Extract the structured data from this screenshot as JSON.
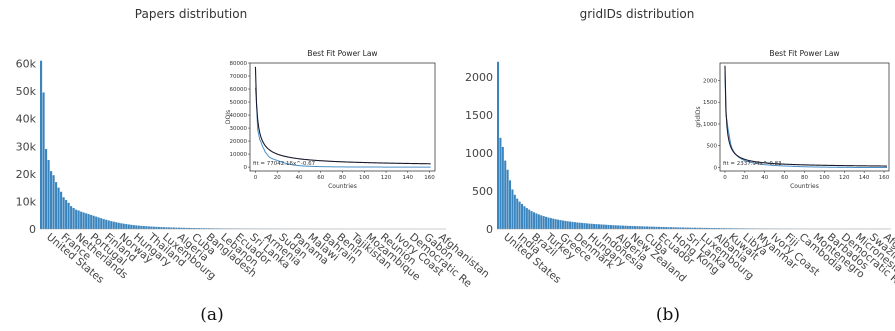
{
  "figure": {
    "panels": [
      {
        "id": "a",
        "caption": "(a)"
      },
      {
        "id": "b",
        "caption": "(b)"
      }
    ]
  },
  "chart_data": [
    {
      "type": "bar",
      "title": "Papers distribution",
      "ylim": [
        0,
        62000
      ],
      "yticks": [
        0,
        10000,
        20000,
        30000,
        40000,
        50000,
        60000
      ],
      "ytick_labels": [
        "0",
        "10k",
        "20k",
        "30k",
        "40k",
        "50k",
        "60k"
      ],
      "labeled_categories": [
        "United States",
        "France",
        "Netherlands",
        "Portugal",
        "Finland",
        "Norway",
        "Hungary",
        "Thailand",
        "Luxembourg",
        "Algeria",
        "Cuba",
        "Bangladesh",
        "Lebanon",
        "Ecuador",
        "Sri Lanka",
        "Armenia",
        "Sudan",
        "Panama",
        "Malawi",
        "Bahrain",
        "Benin",
        "Tajikistan",
        "Mozambique",
        "Reunion",
        "Ivory Coast",
        "Democratic Re",
        "Gabon",
        "Afghanistan"
      ],
      "values": [
        61000,
        49500,
        29000,
        25000,
        21000,
        19500,
        17000,
        15000,
        13500,
        11500,
        10500,
        9500,
        8300,
        7600,
        7000,
        6700,
        6300,
        6000,
        5700,
        5400,
        5100,
        4800,
        4500,
        4200,
        3900,
        3600,
        3350,
        3100,
        2850,
        2650,
        2450,
        2250,
        2080,
        1920,
        1780,
        1650,
        1530,
        1420,
        1320,
        1230,
        1150,
        1080,
        1010,
        950,
        890,
        840,
        790,
        745,
        705,
        665,
        630,
        595,
        565,
        535,
        505,
        480,
        455,
        432,
        410,
        390,
        370,
        352,
        335,
        318,
        302,
        287,
        273,
        260,
        247,
        235,
        224,
        213,
        203,
        193,
        184,
        175,
        167,
        159,
        151,
        144,
        137,
        131,
        125,
        119,
        113,
        108,
        103,
        98,
        93,
        89,
        85,
        81,
        77,
        73,
        70,
        67,
        64,
        61,
        58,
        55,
        52,
        50,
        48,
        46,
        44,
        42,
        40,
        38,
        36,
        34,
        32,
        30,
        29,
        28,
        27,
        26,
        25,
        24,
        23,
        22,
        21,
        20,
        19,
        18,
        17,
        16,
        15,
        14,
        13,
        12,
        11,
        10,
        9,
        8,
        8,
        7,
        7,
        6,
        6,
        5,
        5,
        4,
        4,
        3,
        3,
        3,
        2,
        2,
        2,
        2,
        1,
        1,
        1,
        1,
        1,
        1,
        1,
        1,
        1,
        1,
        1,
        1
      ],
      "color": "#3b85bf",
      "inset": {
        "type": "line",
        "title": "Best Fit Power Law",
        "xlabel": "Countries",
        "ylabel": "DOIs",
        "xlim": [
          -5,
          165
        ],
        "ylim": [
          -3000,
          80000
        ],
        "xticks": [
          0,
          20,
          40,
          60,
          80,
          100,
          120,
          140,
          160
        ],
        "yticks": [
          0,
          10000,
          20000,
          30000,
          40000,
          50000,
          60000,
          70000,
          80000
        ],
        "annotation": "fit = 77042.16x^-0.67",
        "data_series_color": "#4a90c8",
        "fit_series_color": "#1a1a2e",
        "fit": {
          "a": 77042.16,
          "b": 0.67
        }
      }
    },
    {
      "type": "bar",
      "title": "gridIDs distribution",
      "ylim": [
        0,
        2250
      ],
      "yticks": [
        0,
        500,
        1000,
        1500,
        2000
      ],
      "ytick_labels": [
        "0",
        "500",
        "1000",
        "1500",
        "2000"
      ],
      "labeled_categories": [
        "United States",
        "India",
        "Brazil",
        "Turkey",
        "Greece",
        "Denmark",
        "Hungary",
        "Indonesia",
        "Algeria",
        "New Zealand",
        "Cuba",
        "Ecuador",
        "Hong Kong",
        "Sri Lanka",
        "Luxembourg",
        "Albania",
        "Kuwait",
        "Libya",
        "Myanmar",
        "Ivory Coast",
        "Fiji",
        "Cambodia",
        "Montenegro",
        "Barbados",
        "Democratic Re",
        "Micronesia",
        "Swaziland",
        "Afghanistan"
      ],
      "values": [
        2200,
        1200,
        1080,
        900,
        780,
        640,
        520,
        450,
        400,
        360,
        330,
        300,
        275,
        255,
        235,
        220,
        205,
        192,
        180,
        170,
        160,
        151,
        143,
        136,
        129,
        123,
        117,
        112,
        107,
        102,
        98,
        94,
        90,
        86,
        83,
        80,
        77,
        74,
        71,
        69,
        66,
        64,
        62,
        60,
        58,
        56,
        54,
        52,
        50,
        49,
        47,
        46,
        44,
        43,
        41,
        40,
        39,
        38,
        37,
        36,
        35,
        34,
        33,
        32,
        31,
        30,
        29,
        28,
        27,
        26,
        25,
        24,
        24,
        23,
        22,
        21,
        21,
        20,
        19,
        19,
        18,
        17,
        17,
        16,
        16,
        15,
        15,
        14,
        14,
        13,
        13,
        12,
        12,
        11,
        11,
        10,
        10,
        10,
        9,
        9,
        9,
        8,
        8,
        8,
        7,
        7,
        7,
        6,
        6,
        6,
        5,
        5,
        5,
        5,
        4,
        4,
        4,
        4,
        3,
        3,
        3,
        3,
        3,
        2,
        2,
        2,
        2,
        2,
        2,
        2,
        1,
        1,
        1,
        1,
        1,
        1,
        1,
        1,
        1,
        1,
        1,
        1,
        1,
        1,
        1,
        1,
        1,
        1,
        1,
        1,
        1,
        1,
        1,
        1,
        1,
        1,
        1,
        1,
        1,
        1,
        1,
        1,
        1,
        1
      ],
      "color": "#3b85bf",
      "inset": {
        "type": "line",
        "title": "Best Fit Power Law",
        "xlabel": "Countries",
        "ylabel": "gridIDs",
        "xlim": [
          -5,
          165
        ],
        "ylim": [
          -80,
          2400
        ],
        "xticks": [
          0,
          20,
          40,
          60,
          80,
          100,
          120,
          140,
          160
        ],
        "yticks": [
          0,
          500,
          1000,
          1500,
          2000
        ],
        "annotation": "fit = 2337.94x^-0.83",
        "data_series_color": "#4a90c8",
        "fit_series_color": "#1a1a2e",
        "fit": {
          "a": 2337.94,
          "b": 0.83
        }
      }
    }
  ]
}
